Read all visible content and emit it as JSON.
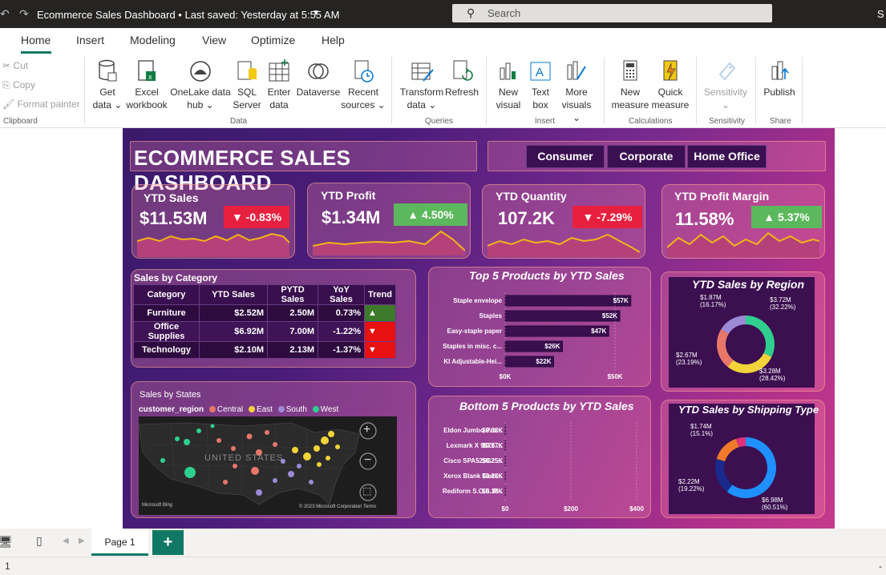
{
  "titlebar": {
    "doc_title": "Ecommerce Sales Dashboard • Last saved: Yesterday at 5:55 AM",
    "search_placeholder": "Search",
    "user_initial": "S"
  },
  "ribbon_tabs": [
    "Home",
    "Insert",
    "Modeling",
    "View",
    "Optimize",
    "Help"
  ],
  "clipboard": {
    "cut": "Cut",
    "copy": "Copy",
    "format_painter": "Format painter",
    "group": "Clipboard"
  },
  "data_group": {
    "get_data": [
      "Get",
      "data ⌄"
    ],
    "excel": [
      "Excel",
      "workbook"
    ],
    "onelake": [
      "OneLake data",
      "hub ⌄"
    ],
    "sql": [
      "SQL",
      "Server"
    ],
    "enter": [
      "Enter",
      "data"
    ],
    "dataverse": [
      "Dataverse"
    ],
    "recent": [
      "Recent",
      "sources ⌄"
    ],
    "group": "Data"
  },
  "queries_group": {
    "transform": [
      "Transform",
      "data ⌄"
    ],
    "refresh": [
      "Refresh"
    ],
    "group": "Queries"
  },
  "insert_group": {
    "new_visual": [
      "New",
      "visual"
    ],
    "text_box": [
      "Text",
      "box"
    ],
    "more_visuals": [
      "More",
      "visuals ⌄"
    ],
    "group": "Insert"
  },
  "calc_group": {
    "new_measure": [
      "New",
      "measure"
    ],
    "quick_measure": [
      "Quick",
      "measure"
    ],
    "group": "Calculations"
  },
  "sens_group": {
    "sensitivity": [
      "Sensitivity",
      "⌄"
    ],
    "group": "Sensitivity"
  },
  "share_group": {
    "publish": [
      "Publish"
    ],
    "group": "Share"
  },
  "dashboard": {
    "title": "ECOMMERCE SALES DASHBOARD",
    "segments": [
      "Consumer",
      "Corporate",
      "Home Office"
    ],
    "kpis": [
      {
        "title": "YTD Sales",
        "value": "$11.53M",
        "change": "▼ -0.83%",
        "direction": "down"
      },
      {
        "title": "YTD Profit",
        "value": "$1.34M",
        "change": "▲ 4.50%",
        "direction": "up"
      },
      {
        "title": "YTD Quantity",
        "value": "107.2K",
        "change": "▼  -7.29%",
        "direction": "down"
      },
      {
        "title": "YTD Profit Margin",
        "value": "11.58%",
        "change": "▲ 5.37%",
        "direction": "up"
      }
    ],
    "sales_by_category": {
      "title": "Sales by Category",
      "headers": [
        "Category",
        "YTD Sales",
        "PYTD Sales",
        "YoY Sales",
        "Trend"
      ],
      "rows": [
        [
          "Furniture",
          "$2.52M",
          "2.50M",
          "0.73%",
          "▲"
        ],
        [
          "Office Supplies",
          "$6.92M",
          "7.00M",
          "-1.22%",
          "▼"
        ],
        [
          "Technology",
          "$2.10M",
          "2.13M",
          "-1.37%",
          "▼"
        ]
      ]
    },
    "sales_by_states": {
      "title": "Sales by States",
      "legend_title": "customer_region",
      "legend": [
        {
          "name": "Central",
          "color": "#e8776a"
        },
        {
          "name": "East",
          "color": "#f2d33a"
        },
        {
          "name": "South",
          "color": "#9c8ad6"
        },
        {
          "name": "West",
          "color": "#2fcf8f"
        }
      ],
      "map_label": "UNITED STATES",
      "attribution": "© 2023 Microsoft Corporation  Terms",
      "bing": "Microsoft Bing"
    },
    "top5": {
      "title": "Top 5 Products by YTD Sales",
      "axis": [
        "$0K",
        "$50K"
      ]
    },
    "bottom5": {
      "title": "Bottom 5 Products by YTD Sales",
      "axis": [
        "$0",
        "$200",
        "$400"
      ]
    },
    "region": {
      "title": "YTD Sales by Region"
    },
    "shipping": {
      "title": "YTD Sales by Shipping Type"
    }
  },
  "chart_data": [
    {
      "type": "bar",
      "title": "Top 5 Products by YTD Sales",
      "categories": [
        "Staple envelope",
        "Staples",
        "Easy-staple paper",
        "Staples in misc. c...",
        "Kl Adjustable-Hei..."
      ],
      "values": [
        57,
        52,
        47,
        26,
        22
      ],
      "value_labels": [
        "$57K",
        "$52K",
        "$47K",
        "$26K",
        "$22K"
      ],
      "xlim": [
        0,
        60
      ],
      "xticks": [
        "$0K",
        "$50K"
      ],
      "color": "#3a0f4f"
    },
    {
      "type": "bar",
      "title": "Bottom 5 Products by YTD Sales",
      "categories": [
        "Eldon Jumbo Pro...",
        "Lexmark X 9575 ...",
        "Cisco SPA525G2 ...",
        "Xerox Blank Com...",
        "Rediform S.O.S. P..."
      ],
      "values": [
        0.38,
        0.27,
        0.25,
        0.23,
        0.18
      ],
      "value_labels": [
        "$0.38K",
        "$0.27K",
        "$0.25K",
        "$0.23K",
        "$0.18K"
      ],
      "xlim": [
        0,
        400
      ],
      "xticks": [
        "$0",
        "$200",
        "$400"
      ],
      "color": "#3a0f4f"
    },
    {
      "type": "pie",
      "title": "YTD Sales by Region",
      "slices": [
        {
          "label": "$3.72M\n(32.22%)",
          "value": 32.22,
          "color": "#2fcf8f"
        },
        {
          "label": "$3.28M\n(28.42%)",
          "value": 28.42,
          "color": "#f2d33a"
        },
        {
          "label": "$2.67M\n(23.19%)",
          "value": 23.19,
          "color": "#e8776a"
        },
        {
          "label": "$1.87M\n(16.17%)",
          "value": 16.17,
          "color": "#9c8ad6"
        }
      ]
    },
    {
      "type": "pie",
      "title": "YTD Sales by Shipping Type",
      "slices": [
        {
          "label": "$6.98M\n(60.51%)",
          "value": 60.51,
          "color": "#1e90ff"
        },
        {
          "label": "$2.22M\n(19.22%)",
          "value": 19.22,
          "color": "#1a2a8c"
        },
        {
          "label": "$1.74M\n(15.1%)",
          "value": 15.1,
          "color": "#f07a2a"
        },
        {
          "label": "",
          "value": 5.17,
          "color": "#e0307a"
        }
      ]
    }
  ],
  "pagebar": {
    "page1": "Page 1",
    "add": "+"
  },
  "statusbar": {
    "page_info": "1",
    "zoom": "-"
  }
}
